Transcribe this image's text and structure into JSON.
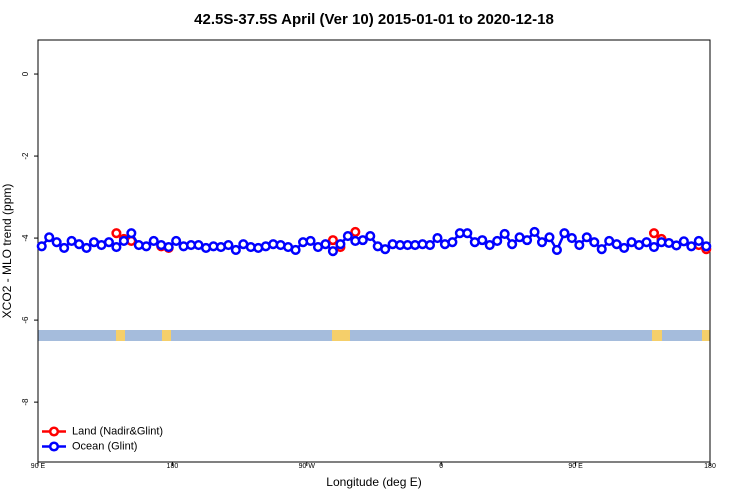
{
  "chart_data": {
    "type": "line",
    "title": "42.5S-37.5S April (Ver 10)   2015-01-01 to 2020-12-18",
    "x_label": "Longitude (deg E)",
    "y_label": "XCO2 - MLO trend (ppm)",
    "xlim": [
      90,
      540
    ],
    "ylim": [
      -9.46,
      0.83
    ],
    "xticks": [
      {
        "value": 90,
        "label": "90 E"
      },
      180,
      {
        "value": 270,
        "label": "90 W"
      },
      {
        "value": 360,
        "label": "0"
      },
      {
        "value": 450,
        "label": "90 E"
      },
      {
        "value": 540,
        "label": "180"
      }
    ],
    "yticks": [
      0,
      -2,
      -4,
      -6,
      -8
    ],
    "legend": "bottom-left",
    "x": [
      92.5,
      97.5,
      102.5,
      107.5,
      112.5,
      117.5,
      122.5,
      127.5,
      132.5,
      137.5,
      142.5,
      147.5,
      152.5,
      157.5,
      162.5,
      167.5,
      172.5,
      177.5,
      182.5,
      187.5,
      192.5,
      197.5,
      202.5,
      207.5,
      212.5,
      217.5,
      222.5,
      227.5,
      232.5,
      237.5,
      242.5,
      247.5,
      252.5,
      257.5,
      262.5,
      267.5,
      272.5,
      277.5,
      282.5,
      287.5,
      292.5,
      297.5,
      302.5,
      307.5,
      312.5,
      317.5,
      322.5,
      327.5,
      332.5,
      337.5,
      342.5,
      347.5,
      352.5,
      357.5,
      362.5,
      367.5,
      372.5,
      377.5,
      382.5,
      387.5,
      392.5,
      397.5,
      402.5,
      407.5,
      412.5,
      417.5,
      422.5,
      427.5,
      432.5,
      437.5,
      442.5,
      447.5,
      452.5,
      457.5,
      462.5,
      467.5,
      472.5,
      477.5,
      482.5,
      487.5,
      492.5,
      497.5,
      502.5,
      507.5,
      512.5,
      517.5,
      522.5,
      527.5,
      532.5,
      537.5
    ],
    "series": [
      {
        "name": "Land (Nadir&Glint)",
        "color": "#ff0000",
        "values": [
          null,
          null,
          null,
          null,
          null,
          null,
          null,
          null,
          null,
          null,
          -3.88,
          -4.02,
          -4.07,
          null,
          null,
          null,
          -4.2,
          -4.24,
          null,
          null,
          null,
          null,
          null,
          null,
          null,
          null,
          null,
          null,
          null,
          null,
          null,
          null,
          null,
          null,
          null,
          null,
          null,
          null,
          null,
          -4.05,
          -4.22,
          null,
          -3.85,
          null,
          null,
          null,
          null,
          null,
          null,
          null,
          null,
          null,
          null,
          null,
          null,
          null,
          null,
          null,
          null,
          null,
          null,
          null,
          null,
          null,
          null,
          null,
          null,
          null,
          null,
          null,
          null,
          null,
          null,
          null,
          null,
          null,
          null,
          null,
          null,
          null,
          null,
          null,
          -3.88,
          -4.02,
          null,
          null,
          null,
          null,
          -4.17,
          -4.27
        ]
      },
      {
        "name": "Ocean (Glint)",
        "color": "#0000ff",
        "values": [
          -4.2,
          -3.98,
          -4.1,
          -4.24,
          -4.07,
          -4.15,
          -4.24,
          -4.1,
          -4.17,
          -4.1,
          -4.22,
          -4.07,
          -3.88,
          -4.17,
          -4.2,
          -4.07,
          -4.17,
          -4.22,
          -4.07,
          -4.2,
          -4.17,
          -4.17,
          -4.24,
          -4.2,
          -4.22,
          -4.17,
          -4.29,
          -4.15,
          -4.22,
          -4.24,
          -4.2,
          -4.15,
          -4.17,
          -4.22,
          -4.29,
          -4.1,
          -4.07,
          -4.22,
          -4.15,
          -4.32,
          -4.15,
          -3.95,
          -4.07,
          -4.05,
          -3.95,
          -4.2,
          -4.27,
          -4.15,
          -4.17,
          -4.17,
          -4.17,
          -4.15,
          -4.17,
          -4.0,
          -4.15,
          -4.1,
          -3.88,
          -3.88,
          -4.1,
          -4.05,
          -4.17,
          -4.07,
          -3.9,
          -4.15,
          -3.98,
          -4.05,
          -3.85,
          -4.1,
          -3.98,
          -4.29,
          -3.88,
          -4.0,
          -4.17,
          -3.98,
          -4.1,
          -4.27,
          -4.07,
          -4.15,
          -4.24,
          -4.1,
          -4.17,
          -4.1,
          -4.22,
          -4.1,
          -4.12,
          -4.18,
          -4.08,
          -4.2,
          -4.07,
          -4.2
        ]
      }
    ]
  }
}
